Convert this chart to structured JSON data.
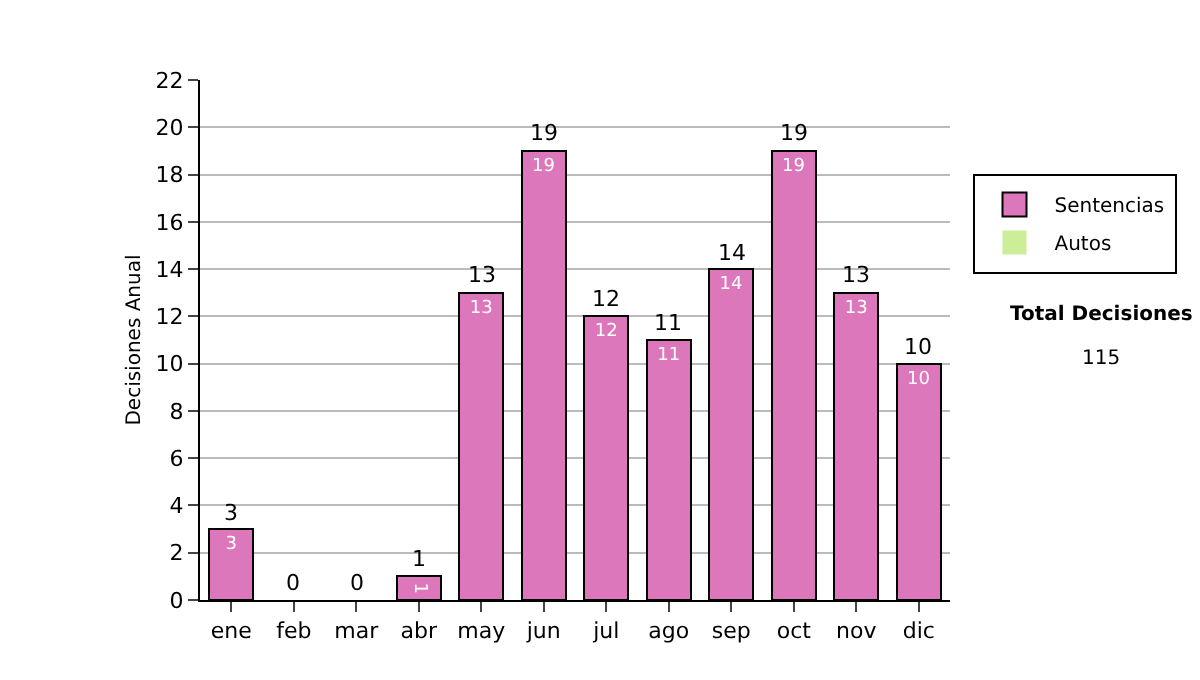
{
  "chart_data": {
    "type": "bar",
    "stacked": true,
    "ylabel": "Decisiones Anual",
    "categories": [
      "ene",
      "feb",
      "mar",
      "abr",
      "may",
      "jun",
      "jul",
      "ago",
      "sep",
      "oct",
      "nov",
      "dic"
    ],
    "series": [
      {
        "name": "Sentencias",
        "color": "#dd77bb",
        "values": [
          3,
          0,
          0,
          1,
          13,
          19,
          12,
          11,
          14,
          19,
          13,
          10
        ],
        "value_labels": [
          "3",
          null,
          null,
          "1",
          "13",
          "19",
          "12",
          "11",
          "14",
          "19",
          "13",
          "10"
        ]
      },
      {
        "name": "Autos",
        "color": "#ccee99",
        "values": [
          0,
          0,
          0,
          0,
          0,
          0,
          0,
          0,
          0,
          0,
          0,
          0
        ]
      }
    ],
    "totals": [
      "3",
      "0",
      "0",
      "1",
      "13",
      "19",
      "12",
      "11",
      "14",
      "19",
      "13",
      "10"
    ],
    "ylim": [
      0,
      22
    ],
    "yticks": [
      0,
      2,
      4,
      6,
      8,
      10,
      12,
      14,
      16,
      18,
      20,
      22
    ],
    "grid": "y",
    "legend": "right",
    "annotations": [
      "Total Decisiones",
      "115"
    ]
  }
}
